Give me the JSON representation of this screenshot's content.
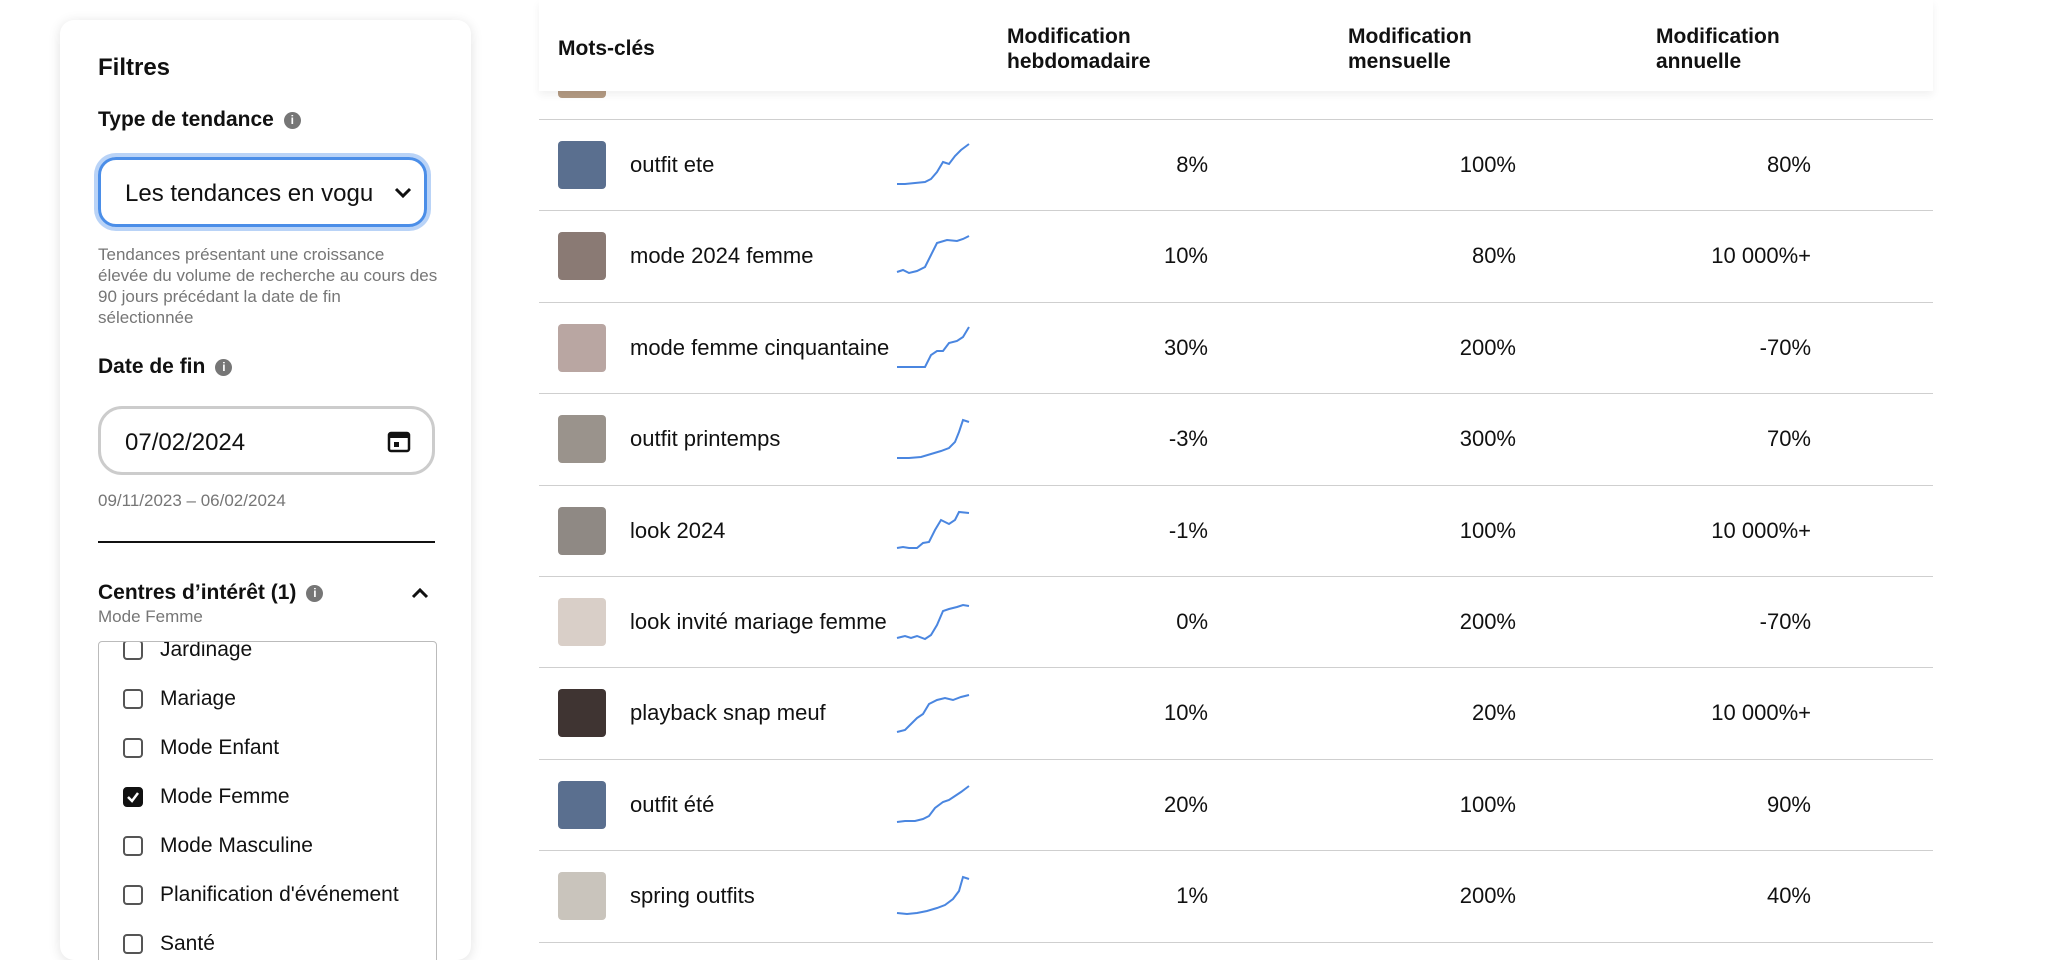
{
  "sidebar": {
    "title": "Filtres",
    "trend_type": {
      "label": "Type de tendance",
      "value": "Les tendances en vogu",
      "help": "Tendances présentant une croissance élevée du volume de recherche au cours des 90 jours précédant la date de fin sélectionnée"
    },
    "end_date": {
      "label": "Date de fin",
      "value": "07/02/2024",
      "range": "09/11/2023 – 06/02/2024"
    },
    "interests": {
      "label": "Centres d’intérêt (1)",
      "selected": "Mode Femme",
      "options": [
        {
          "label": "Jardinage",
          "checked": false
        },
        {
          "label": "Mariage",
          "checked": false
        },
        {
          "label": "Mode Enfant",
          "checked": false
        },
        {
          "label": "Mode Femme",
          "checked": true
        },
        {
          "label": "Mode Masculine",
          "checked": false
        },
        {
          "label": "Planification d'événement",
          "checked": false
        },
        {
          "label": "Santé",
          "checked": false
        }
      ]
    }
  },
  "table": {
    "headers": [
      "Mots-clés",
      "Modification hebdomadaire",
      "Modification mensuelle",
      "Modification annuelle"
    ],
    "rows": [
      [
        "outfit ete",
        "8%",
        "100%",
        "80%"
      ],
      [
        "mode 2024 femme",
        "10%",
        "80%",
        "10 000%+"
      ],
      [
        "mode femme cinquantaine",
        "30%",
        "200%",
        "-70%"
      ],
      [
        "outfit printemps",
        "-3%",
        "300%",
        "70%"
      ],
      [
        "look 2024",
        "-1%",
        "100%",
        "10 000%+"
      ],
      [
        "look invité mariage femme",
        "0%",
        "200%",
        "-70%"
      ],
      [
        "playback snap meuf",
        "10%",
        "20%",
        "10 000%+"
      ],
      [
        "outfit été",
        "20%",
        "100%",
        "90%"
      ],
      [
        "spring outfits",
        "1%",
        "200%",
        "40%"
      ]
    ]
  }
}
